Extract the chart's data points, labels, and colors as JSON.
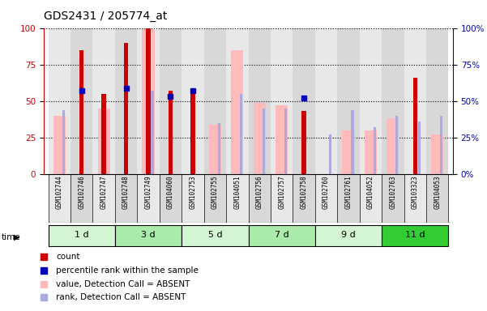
{
  "title": "GDS2431 / 205774_at",
  "samples": [
    "GSM102744",
    "GSM102746",
    "GSM102747",
    "GSM102748",
    "GSM102749",
    "GSM104060",
    "GSM102753",
    "GSM102755",
    "GSM104051",
    "GSM102756",
    "GSM102757",
    "GSM102758",
    "GSM102760",
    "GSM102761",
    "GSM104052",
    "GSM102763",
    "GSM103323",
    "GSM104053"
  ],
  "time_groups": [
    {
      "label": "1 d",
      "start": 0,
      "end": 3,
      "color": "#d4f5d4"
    },
    {
      "label": "3 d",
      "start": 3,
      "end": 6,
      "color": "#aaeaaa"
    },
    {
      "label": "5 d",
      "start": 6,
      "end": 9,
      "color": "#d4f5d4"
    },
    {
      "label": "7 d",
      "start": 9,
      "end": 12,
      "color": "#aaeaaa"
    },
    {
      "label": "9 d",
      "start": 12,
      "end": 15,
      "color": "#d4f5d4"
    },
    {
      "label": "11 d",
      "start": 15,
      "end": 18,
      "color": "#33cc33"
    }
  ],
  "count_values": [
    0,
    85,
    55,
    90,
    100,
    57,
    56,
    0,
    0,
    0,
    0,
    43,
    0,
    0,
    0,
    0,
    66,
    0
  ],
  "percentile_values": [
    0,
    57,
    0,
    59,
    0,
    53,
    57,
    0,
    0,
    0,
    0,
    52,
    0,
    0,
    0,
    0,
    0,
    0
  ],
  "value_absent": [
    40,
    0,
    45,
    0,
    99,
    0,
    0,
    34,
    85,
    49,
    47,
    0,
    0,
    30,
    30,
    38,
    0,
    27
  ],
  "rank_absent": [
    44,
    0,
    0,
    0,
    57,
    0,
    0,
    35,
    55,
    45,
    45,
    0,
    27,
    44,
    32,
    40,
    36,
    40
  ],
  "count_color": "#cc0000",
  "percentile_color": "#0000bb",
  "value_absent_color": "#ffbbbb",
  "rank_absent_color": "#aaaadd",
  "ylim": [
    0,
    100
  ],
  "yticks_left": [
    0,
    25,
    50,
    75,
    100
  ],
  "yticks_right": [
    0,
    25,
    50,
    75,
    100
  ],
  "bg_color": "#ffffff",
  "col_bg_even": "#e8e8e8",
  "col_bg_odd": "#d8d8d8"
}
